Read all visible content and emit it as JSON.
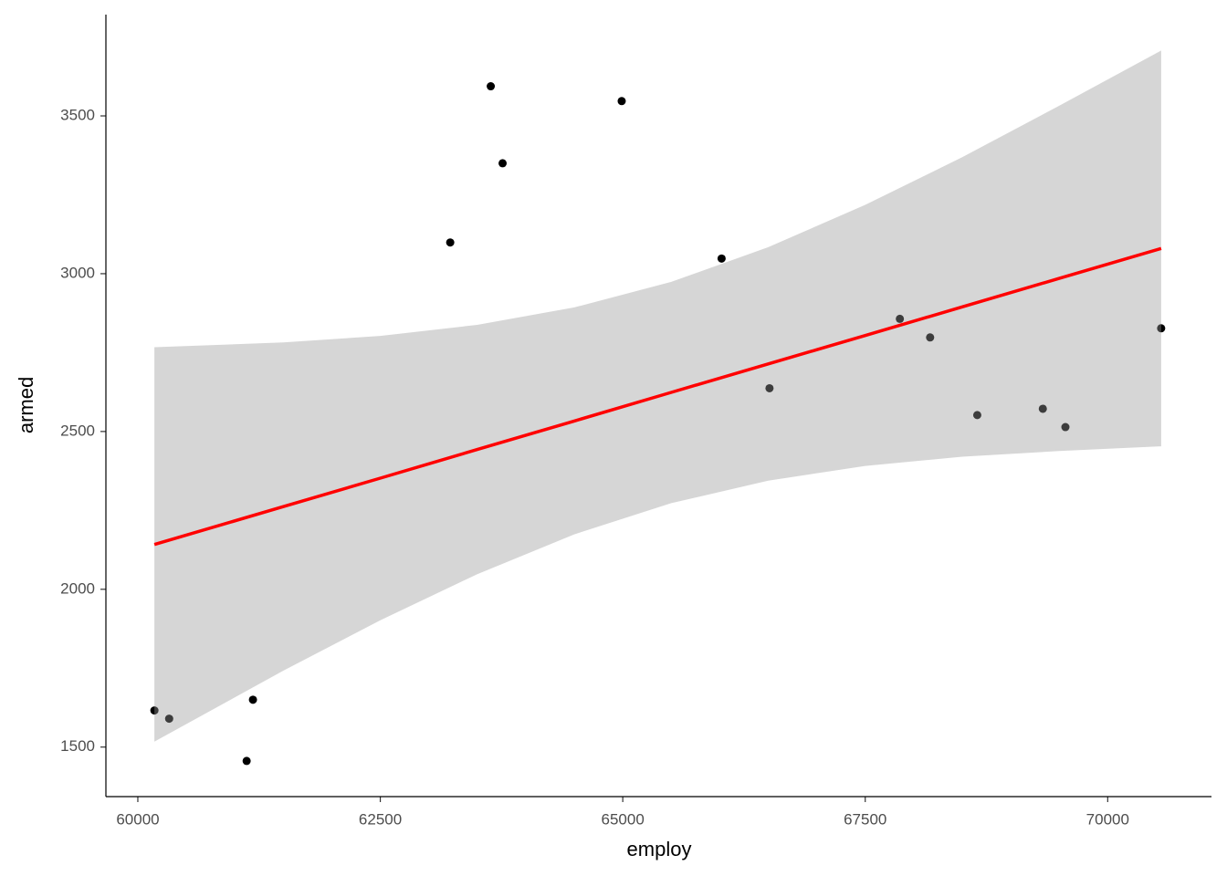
{
  "chart_data": {
    "type": "scatter",
    "x_label": "employ",
    "y_label": "armed",
    "x": [
      60323,
      61122,
      60171,
      61187,
      63221,
      63639,
      64989,
      63761,
      66019,
      67857,
      68169,
      66513,
      68655,
      69564,
      69331,
      70551
    ],
    "values": [
      1590,
      1456,
      1616,
      1650,
      3099,
      3594,
      3547,
      3350,
      3048,
      2857,
      2798,
      2637,
      2552,
      2514,
      2572,
      2827
    ],
    "color": "#000000",
    "smooth": {
      "color": "#ff0000",
      "band_color": "#999999",
      "x": [
        60171,
        61500,
        62500,
        63500,
        64500,
        65500,
        66500,
        67500,
        68500,
        69500,
        70551
      ],
      "values": [
        2142,
        2262,
        2352,
        2443,
        2533,
        2624,
        2714,
        2804,
        2895,
        2985,
        3080
      ],
      "lower": [
        1517,
        1742,
        1902,
        2048,
        2174,
        2273,
        2344,
        2391,
        2420,
        2438,
        2453
      ],
      "upper": [
        2767,
        2782,
        2803,
        2838,
        2893,
        2974,
        3084,
        3218,
        3369,
        3532,
        3707
      ]
    },
    "xlim": [
      59652,
      71070
    ],
    "ylim": [
      1343,
      3821
    ],
    "xticks": [
      60000,
      62500,
      65000,
      67500,
      70000
    ],
    "yticks": [
      1500,
      2000,
      2500,
      3000,
      3500
    ],
    "grid": false
  }
}
